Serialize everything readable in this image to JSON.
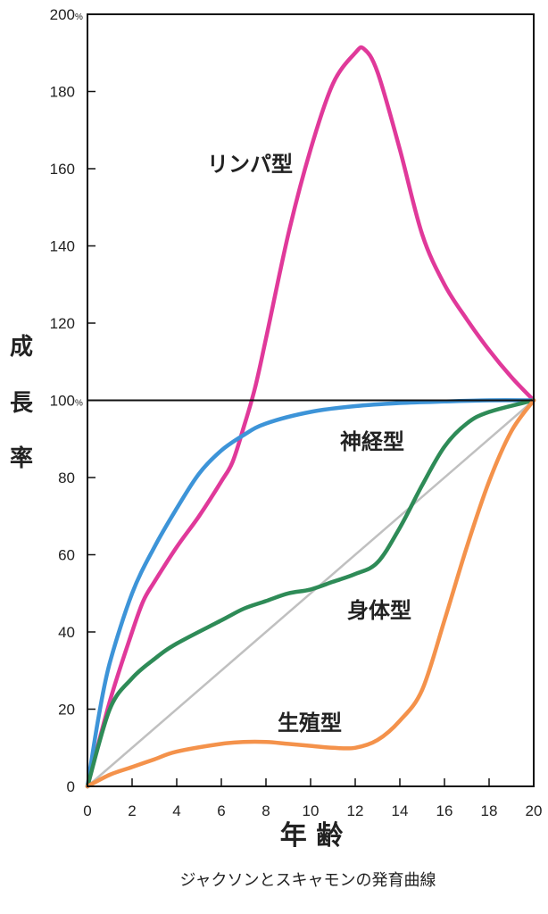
{
  "chart_data": {
    "type": "line",
    "title": "",
    "caption": "ジャクソンとスキャモンの発育曲線",
    "xlabel": "年 齢",
    "ylabel": [
      "成",
      "長",
      "率"
    ],
    "xlim": [
      0,
      20
    ],
    "ylim": [
      0,
      200
    ],
    "x_ticks": [
      0,
      2,
      4,
      6,
      8,
      10,
      12,
      14,
      16,
      18,
      20
    ],
    "y_ticks": [
      0,
      20,
      40,
      60,
      80,
      100,
      120,
      140,
      160,
      180,
      200
    ],
    "y_ticks_with_percent": [
      100,
      200
    ],
    "percent_suffix": "%",
    "reference_line_y": 100,
    "series": [
      {
        "name": "リンパ型",
        "color": "#e0399a",
        "points": [
          [
            0,
            0
          ],
          [
            1,
            22
          ],
          [
            2,
            40
          ],
          [
            2.5,
            48
          ],
          [
            3,
            53
          ],
          [
            4,
            62
          ],
          [
            5,
            70
          ],
          [
            6,
            79
          ],
          [
            6.5,
            84
          ],
          [
            7,
            93
          ],
          [
            7.5,
            103
          ],
          [
            8,
            116
          ],
          [
            9,
            143
          ],
          [
            10,
            165
          ],
          [
            11,
            182
          ],
          [
            12,
            190
          ],
          [
            12.4,
            191
          ],
          [
            13,
            185
          ],
          [
            14,
            165
          ],
          [
            15,
            143
          ],
          [
            16,
            130
          ],
          [
            17,
            121
          ],
          [
            18,
            113
          ],
          [
            19,
            106
          ],
          [
            20,
            100
          ]
        ]
      },
      {
        "name": "神経型",
        "color": "#3d94d8",
        "points": [
          [
            0,
            0
          ],
          [
            0.5,
            18
          ],
          [
            1,
            32
          ],
          [
            2,
            50
          ],
          [
            3,
            62
          ],
          [
            4,
            72
          ],
          [
            5,
            81
          ],
          [
            6,
            87
          ],
          [
            7,
            91
          ],
          [
            8,
            94
          ],
          [
            10,
            97
          ],
          [
            12,
            98.5
          ],
          [
            14,
            99.3
          ],
          [
            16,
            99.7
          ],
          [
            18,
            100
          ],
          [
            20,
            100
          ]
        ]
      },
      {
        "name": "身体型",
        "color": "#2e8b57",
        "points": [
          [
            0,
            0
          ],
          [
            1,
            20
          ],
          [
            2,
            28
          ],
          [
            3,
            33
          ],
          [
            4,
            37
          ],
          [
            6,
            43
          ],
          [
            7,
            46
          ],
          [
            8,
            48
          ],
          [
            9,
            50
          ],
          [
            10,
            51
          ],
          [
            11,
            53
          ],
          [
            12,
            55
          ],
          [
            13,
            58
          ],
          [
            14,
            67
          ],
          [
            15,
            78
          ],
          [
            16,
            88
          ],
          [
            17,
            94
          ],
          [
            18,
            97
          ],
          [
            20,
            100
          ]
        ]
      },
      {
        "name": "生殖型",
        "color": "#f4924b",
        "points": [
          [
            0,
            0
          ],
          [
            1,
            3
          ],
          [
            2,
            5
          ],
          [
            3,
            7
          ],
          [
            4,
            9
          ],
          [
            6,
            11
          ],
          [
            7,
            11.5
          ],
          [
            8,
            11.5
          ],
          [
            9,
            11
          ],
          [
            10,
            10.5
          ],
          [
            11,
            10
          ],
          [
            12,
            10
          ],
          [
            13,
            12
          ],
          [
            14,
            17
          ],
          [
            15,
            25
          ],
          [
            16,
            43
          ],
          [
            17,
            62
          ],
          [
            18,
            79
          ],
          [
            19,
            92
          ],
          [
            20,
            100
          ]
        ]
      },
      {
        "name": "",
        "color": "#c0c0c0",
        "points": [
          [
            0,
            0
          ],
          [
            20,
            100
          ]
        ]
      }
    ]
  }
}
